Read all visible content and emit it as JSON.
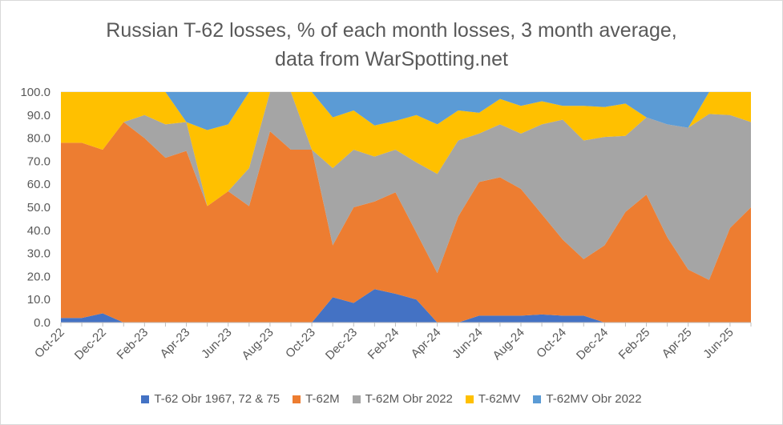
{
  "chart_data": {
    "type": "area",
    "stacked": "percent",
    "title_line1": "Russian T-62 losses, % of each month losses, 3 month average,",
    "title_line2": "data from WarSpotting.net",
    "xlabel": "",
    "ylabel": "",
    "ylim": [
      0,
      100
    ],
    "yticks": [
      "0.0",
      "10.0",
      "20.0",
      "30.0",
      "40.0",
      "50.0",
      "60.0",
      "70.0",
      "80.0",
      "90.0",
      "100.0"
    ],
    "grid": true,
    "legend_position": "bottom",
    "x_labels": [
      "Oct-22",
      "Dec-22",
      "Feb-23",
      "Apr-23",
      "Jun-23",
      "Aug-23",
      "Oct-23",
      "Dec-23",
      "Feb-24",
      "Apr-24",
      "Jun-24",
      "Aug-24",
      "Oct-24",
      "Dec-24",
      "Feb-25",
      "Apr-25",
      "Jun-25"
    ],
    "x": [
      "Oct-22",
      "Nov-22",
      "Dec-22",
      "Jan-23",
      "Feb-23",
      "Mar-23",
      "Apr-23",
      "May-23",
      "Jun-23",
      "Jul-23",
      "Aug-23",
      "Sep-23",
      "Oct-23",
      "Nov-23",
      "Dec-23",
      "Jan-24",
      "Feb-24",
      "Mar-24",
      "Apr-24",
      "May-24",
      "Jun-24",
      "Jul-24",
      "Aug-24",
      "Sep-24",
      "Oct-24",
      "Nov-24",
      "Dec-24",
      "Jan-25",
      "Feb-25",
      "Mar-25",
      "Apr-25",
      "May-25",
      "Jun-25",
      "Jul-25"
    ],
    "series": [
      {
        "name": "T-62 Obr 1967, 72 & 75",
        "color": "#4472C4",
        "values": [
          2.0,
          2.0,
          4.0,
          0.0,
          0.0,
          0.0,
          0.0,
          0.0,
          0.0,
          0.0,
          0.0,
          0.0,
          0.0,
          11.0,
          8.5,
          14.5,
          12.5,
          10.0,
          0.0,
          0.0,
          3.0,
          3.0,
          3.0,
          3.5,
          3.0,
          3.0,
          0.0,
          0.0,
          0.0,
          0.0,
          0.0,
          0.0,
          0.0,
          0.0
        ]
      },
      {
        "name": "T-62M",
        "color": "#ED7D31",
        "values": [
          76.0,
          76.0,
          71.0,
          87.0,
          80.0,
          71.5,
          74.5,
          50.5,
          57.0,
          50.5,
          83.0,
          75.0,
          75.0,
          22.5,
          41.5,
          38.0,
          44.0,
          29.0,
          21.5,
          46.0,
          58.0,
          60.0,
          55.0,
          43.5,
          33.0,
          24.5,
          33.5,
          48.0,
          55.5,
          37.0,
          23.0,
          18.5,
          41.0,
          50.0
        ]
      },
      {
        "name": "T-62M Obr 2022",
        "color": "#A5A5A5",
        "values": [
          0.0,
          0.0,
          0.0,
          0.0,
          10.0,
          14.5,
          12.5,
          0.0,
          0.0,
          16.5,
          17.0,
          25.0,
          0.0,
          33.5,
          25.0,
          19.5,
          18.5,
          30.5,
          43.0,
          33.0,
          21.0,
          23.0,
          24.0,
          39.0,
          52.0,
          51.5,
          47.0,
          33.0,
          33.5,
          49.0,
          61.5,
          72.0,
          49.0,
          37.0
        ]
      },
      {
        "name": "T-62MV",
        "color": "#FFC000",
        "values": [
          22.0,
          22.0,
          25.0,
          13.0,
          10.0,
          14.0,
          0.0,
          33.0,
          29.0,
          33.0,
          0.0,
          0.0,
          25.0,
          22.0,
          17.0,
          13.5,
          12.5,
          20.5,
          21.5,
          13.0,
          9.0,
          11.0,
          12.0,
          10.0,
          6.0,
          15.0,
          13.0,
          14.0,
          0.0,
          0.0,
          0.0,
          9.5,
          10.0,
          13.0
        ]
      },
      {
        "name": "T-62MV Obr 2022",
        "color": "#5B9BD5",
        "values": [
          0.0,
          0.0,
          0.0,
          0.0,
          0.0,
          0.0,
          13.0,
          16.5,
          14.0,
          0.0,
          0.0,
          0.0,
          0.0,
          11.0,
          8.0,
          14.5,
          12.5,
          10.0,
          14.0,
          8.0,
          9.0,
          3.0,
          6.0,
          4.0,
          6.0,
          6.0,
          6.5,
          5.0,
          11.0,
          14.0,
          15.5,
          0.0,
          0.0,
          0.0
        ]
      }
    ]
  }
}
